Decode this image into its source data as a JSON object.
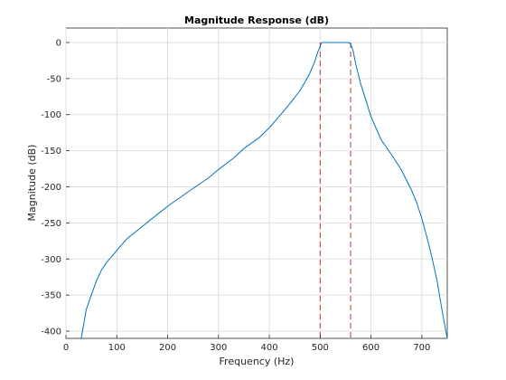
{
  "colors": {
    "background": "#ffffff",
    "line": "#0072bd",
    "marker": "#c0392b",
    "grid": "#dfdfdf",
    "axis": "#262626"
  },
  "chart_data": {
    "type": "line",
    "title": "Magnitude Response (dB)",
    "xlabel": "Frequency (Hz)",
    "ylabel": "Magnitude (dB)",
    "xlim": [
      0,
      750
    ],
    "ylim": [
      -410,
      20
    ],
    "xticks": [
      0,
      100,
      200,
      300,
      400,
      500,
      600,
      700
    ],
    "yticks": [
      0,
      -50,
      -100,
      -150,
      -200,
      -250,
      -300,
      -350,
      -400
    ],
    "grid": true,
    "legend": "none",
    "series": [
      {
        "x": [
          30,
          35,
          40,
          50,
          60,
          70,
          80,
          100,
          120,
          150,
          180,
          200,
          230,
          250,
          280,
          300,
          330,
          350,
          380,
          400,
          420,
          440,
          460,
          470,
          480,
          490,
          495,
          500,
          503,
          510,
          520,
          530,
          540,
          550,
          555,
          560,
          565,
          570,
          580,
          590,
          600,
          620,
          640,
          660,
          680,
          690,
          700,
          710,
          720,
          730,
          735,
          740,
          745,
          750
        ],
        "y": [
          -410,
          -390,
          -370,
          -350,
          -330,
          -315,
          -305,
          -288,
          -272,
          -255,
          -238,
          -227,
          -212,
          -202,
          -188,
          -176,
          -160,
          -147,
          -132,
          -118,
          -102,
          -85,
          -67,
          -55,
          -42,
          -25,
          -14,
          -5,
          0,
          0,
          0,
          0,
          0,
          0,
          0,
          -2,
          -12,
          -30,
          -58,
          -80,
          -103,
          -135,
          -155,
          -177,
          -205,
          -222,
          -244,
          -270,
          -298,
          -330,
          -352,
          -372,
          -392,
          -410
        ]
      }
    ],
    "markers": [
      {
        "x": 500,
        "style": "dashed"
      },
      {
        "x": 560,
        "style": "dashed"
      }
    ]
  }
}
